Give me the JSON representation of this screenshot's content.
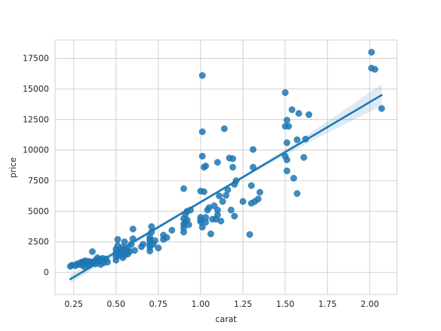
{
  "chart_data": {
    "type": "scatter",
    "title": "",
    "xlabel": "carat",
    "ylabel": "price",
    "xlim": [
      0.14,
      2.16
    ],
    "ylim": [
      -1800,
      19000
    ],
    "grid": true,
    "legend": "none",
    "x_ticks": [
      0.25,
      0.5,
      0.75,
      1.0,
      1.25,
      1.5,
      1.75,
      2.0
    ],
    "x_tick_labels": [
      "0.25",
      "0.50",
      "0.75",
      "1.00",
      "1.25",
      "1.50",
      "1.75",
      "2.00"
    ],
    "y_ticks": [
      0,
      2500,
      5000,
      7500,
      10000,
      12500,
      15000,
      17500
    ],
    "y_tick_labels": [
      "0",
      "2500",
      "5000",
      "7500",
      "10000",
      "12500",
      "15000",
      "17500"
    ],
    "colors": {
      "points": "#1f77b4",
      "regression_line": "#1f77b4",
      "confidence_band": "#1f77b4",
      "grid": "#cccccc",
      "frame": "#cccccc"
    },
    "regression": {
      "x_start": 0.23,
      "y_start": -550,
      "x_end": 2.07,
      "y_end": 14500,
      "ci_halfwidth_start": 350,
      "ci_halfwidth_mid": 120,
      "ci_halfwidth_end": 900
    },
    "points": [
      {
        "x": 0.23,
        "y": 500
      },
      {
        "x": 0.24,
        "y": 600
      },
      {
        "x": 0.26,
        "y": 550
      },
      {
        "x": 0.27,
        "y": 700
      },
      {
        "x": 0.28,
        "y": 650
      },
      {
        "x": 0.29,
        "y": 800
      },
      {
        "x": 0.3,
        "y": 600
      },
      {
        "x": 0.3,
        "y": 850
      },
      {
        "x": 0.31,
        "y": 500
      },
      {
        "x": 0.31,
        "y": 700
      },
      {
        "x": 0.31,
        "y": 900
      },
      {
        "x": 0.32,
        "y": 750
      },
      {
        "x": 0.32,
        "y": 950
      },
      {
        "x": 0.33,
        "y": 600
      },
      {
        "x": 0.33,
        "y": 800
      },
      {
        "x": 0.34,
        "y": 700
      },
      {
        "x": 0.34,
        "y": 900
      },
      {
        "x": 0.35,
        "y": 650
      },
      {
        "x": 0.35,
        "y": 850
      },
      {
        "x": 0.36,
        "y": 1700
      },
      {
        "x": 0.36,
        "y": 750
      },
      {
        "x": 0.37,
        "y": 900
      },
      {
        "x": 0.38,
        "y": 1000
      },
      {
        "x": 0.38,
        "y": 700
      },
      {
        "x": 0.39,
        "y": 1200
      },
      {
        "x": 0.4,
        "y": 900
      },
      {
        "x": 0.4,
        "y": 1100
      },
      {
        "x": 0.41,
        "y": 650
      },
      {
        "x": 0.41,
        "y": 1000
      },
      {
        "x": 0.42,
        "y": 1150
      },
      {
        "x": 0.43,
        "y": 800
      },
      {
        "x": 0.44,
        "y": 1100
      },
      {
        "x": 0.45,
        "y": 850
      },
      {
        "x": 0.5,
        "y": 1000
      },
      {
        "x": 0.5,
        "y": 1300
      },
      {
        "x": 0.5,
        "y": 1600
      },
      {
        "x": 0.5,
        "y": 1900
      },
      {
        "x": 0.51,
        "y": 2200
      },
      {
        "x": 0.51,
        "y": 2700
      },
      {
        "x": 0.52,
        "y": 1400
      },
      {
        "x": 0.52,
        "y": 1700
      },
      {
        "x": 0.53,
        "y": 1500
      },
      {
        "x": 0.53,
        "y": 1850
      },
      {
        "x": 0.54,
        "y": 1200
      },
      {
        "x": 0.54,
        "y": 2050
      },
      {
        "x": 0.55,
        "y": 1400
      },
      {
        "x": 0.55,
        "y": 2500
      },
      {
        "x": 0.56,
        "y": 1600
      },
      {
        "x": 0.56,
        "y": 1800
      },
      {
        "x": 0.57,
        "y": 1500
      },
      {
        "x": 0.57,
        "y": 2000
      },
      {
        "x": 0.58,
        "y": 1700
      },
      {
        "x": 0.59,
        "y": 2300
      },
      {
        "x": 0.6,
        "y": 2750
      },
      {
        "x": 0.6,
        "y": 3550
      },
      {
        "x": 0.61,
        "y": 1800
      },
      {
        "x": 0.65,
        "y": 2100
      },
      {
        "x": 0.66,
        "y": 2300
      },
      {
        "x": 0.7,
        "y": 1750
      },
      {
        "x": 0.7,
        "y": 2050
      },
      {
        "x": 0.7,
        "y": 2250
      },
      {
        "x": 0.7,
        "y": 2500
      },
      {
        "x": 0.7,
        "y": 2700
      },
      {
        "x": 0.7,
        "y": 2900
      },
      {
        "x": 0.71,
        "y": 3300
      },
      {
        "x": 0.71,
        "y": 3750
      },
      {
        "x": 0.72,
        "y": 2300
      },
      {
        "x": 0.73,
        "y": 2600
      },
      {
        "x": 0.75,
        "y": 2000
      },
      {
        "x": 0.78,
        "y": 2700
      },
      {
        "x": 0.78,
        "y": 3050
      },
      {
        "x": 0.8,
        "y": 2850
      },
      {
        "x": 0.83,
        "y": 3450
      },
      {
        "x": 0.9,
        "y": 3300
      },
      {
        "x": 0.9,
        "y": 3650
      },
      {
        "x": 0.9,
        "y": 3950
      },
      {
        "x": 0.9,
        "y": 4400
      },
      {
        "x": 0.9,
        "y": 6850
      },
      {
        "x": 0.91,
        "y": 4100
      },
      {
        "x": 0.91,
        "y": 4750
      },
      {
        "x": 0.92,
        "y": 4300
      },
      {
        "x": 0.92,
        "y": 5000
      },
      {
        "x": 0.93,
        "y": 3900
      },
      {
        "x": 0.94,
        "y": 5100
      },
      {
        "x": 1.0,
        "y": 4150
      },
      {
        "x": 1.0,
        "y": 4300
      },
      {
        "x": 1.0,
        "y": 4500
      },
      {
        "x": 1.0,
        "y": 6650
      },
      {
        "x": 1.01,
        "y": 9500
      },
      {
        "x": 1.01,
        "y": 11500
      },
      {
        "x": 1.01,
        "y": 16100
      },
      {
        "x": 1.01,
        "y": 3700
      },
      {
        "x": 1.02,
        "y": 6600
      },
      {
        "x": 1.02,
        "y": 8600
      },
      {
        "x": 1.03,
        "y": 8700
      },
      {
        "x": 1.03,
        "y": 4100
      },
      {
        "x": 1.03,
        "y": 4500
      },
      {
        "x": 1.04,
        "y": 5100
      },
      {
        "x": 1.05,
        "y": 5300
      },
      {
        "x": 1.06,
        "y": 3150
      },
      {
        "x": 1.07,
        "y": 4350
      },
      {
        "x": 1.08,
        "y": 5450
      },
      {
        "x": 1.09,
        "y": 4350
      },
      {
        "x": 1.1,
        "y": 4700
      },
      {
        "x": 1.1,
        "y": 5100
      },
      {
        "x": 1.1,
        "y": 9000
      },
      {
        "x": 1.11,
        "y": 6250
      },
      {
        "x": 1.12,
        "y": 4200
      },
      {
        "x": 1.13,
        "y": 5800
      },
      {
        "x": 1.14,
        "y": 11750
      },
      {
        "x": 1.15,
        "y": 6300
      },
      {
        "x": 1.16,
        "y": 6750
      },
      {
        "x": 1.17,
        "y": 9350
      },
      {
        "x": 1.18,
        "y": 5100
      },
      {
        "x": 1.19,
        "y": 9300
      },
      {
        "x": 1.19,
        "y": 8600
      },
      {
        "x": 1.2,
        "y": 4600
      },
      {
        "x": 1.2,
        "y": 7200
      },
      {
        "x": 1.21,
        "y": 7500
      },
      {
        "x": 1.25,
        "y": 5800
      },
      {
        "x": 1.29,
        "y": 3100
      },
      {
        "x": 1.3,
        "y": 5650
      },
      {
        "x": 1.3,
        "y": 7100
      },
      {
        "x": 1.31,
        "y": 8600
      },
      {
        "x": 1.31,
        "y": 10050
      },
      {
        "x": 1.32,
        "y": 5800
      },
      {
        "x": 1.34,
        "y": 6000
      },
      {
        "x": 1.35,
        "y": 6550
      },
      {
        "x": 1.5,
        "y": 9500
      },
      {
        "x": 1.5,
        "y": 11950
      },
      {
        "x": 1.5,
        "y": 14700
      },
      {
        "x": 1.51,
        "y": 10600
      },
      {
        "x": 1.51,
        "y": 12450
      },
      {
        "x": 1.51,
        "y": 9200
      },
      {
        "x": 1.51,
        "y": 8300
      },
      {
        "x": 1.52,
        "y": 11950
      },
      {
        "x": 1.54,
        "y": 13300
      },
      {
        "x": 1.55,
        "y": 7700
      },
      {
        "x": 1.57,
        "y": 6450
      },
      {
        "x": 1.57,
        "y": 10850
      },
      {
        "x": 1.58,
        "y": 13000
      },
      {
        "x": 1.61,
        "y": 9400
      },
      {
        "x": 1.62,
        "y": 10900
      },
      {
        "x": 1.64,
        "y": 12900
      },
      {
        "x": 2.01,
        "y": 18000
      },
      {
        "x": 2.01,
        "y": 16700
      },
      {
        "x": 2.03,
        "y": 16600
      },
      {
        "x": 2.07,
        "y": 13400
      }
    ]
  }
}
